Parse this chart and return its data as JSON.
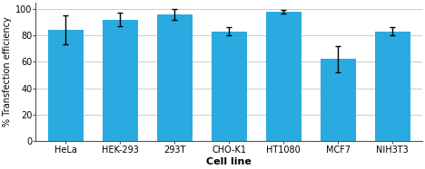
{
  "categories": [
    "HeLa",
    "HEK-293",
    "293T",
    "CHO-K1",
    "HT1080",
    "MCF7",
    "NIH3T3"
  ],
  "values": [
    84,
    92,
    96,
    83,
    98,
    62,
    83
  ],
  "errors": [
    11,
    5,
    4,
    3,
    1.5,
    10,
    3
  ],
  "bar_color": "#29ABE2",
  "title": "",
  "xlabel": "Cell line",
  "ylabel": "% Transfection efficiency",
  "ylim": [
    0,
    105
  ],
  "yticks": [
    0,
    20,
    40,
    60,
    80,
    100
  ],
  "grid_color": "#cccccc",
  "background_color": "#ffffff",
  "bar_width": 0.65
}
